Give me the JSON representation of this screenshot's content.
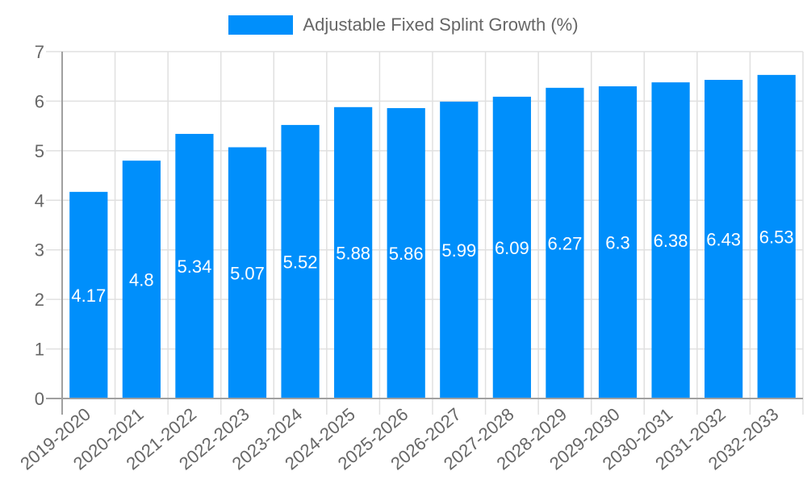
{
  "legend": {
    "label": "Adjustable Fixed Splint Growth (%)",
    "color": "#008ffb"
  },
  "colors": {
    "bar": "#008ffb",
    "bar_label": "#ffffff",
    "grid": "#e0e0e0",
    "axis": "#a0a0a0",
    "tick_text": "#666666"
  },
  "chart_data": {
    "type": "bar",
    "title": "",
    "xlabel": "",
    "ylabel": "",
    "ylim": [
      0,
      7
    ],
    "yticks": [
      0,
      1,
      2,
      3,
      4,
      5,
      6,
      7
    ],
    "grid": true,
    "legend_position": "top",
    "categories": [
      "2019-2020",
      "2020-2021",
      "2021-2022",
      "2022-2023",
      "2023-2024",
      "2024-2025",
      "2025-2026",
      "2026-2027",
      "2027-2028",
      "2028-2029",
      "2029-2030",
      "2030-2031",
      "2031-2032",
      "2032-2033"
    ],
    "series": [
      {
        "name": "Adjustable Fixed Splint Growth (%)",
        "values": [
          4.17,
          4.8,
          5.34,
          5.07,
          5.52,
          5.88,
          5.86,
          5.99,
          6.09,
          6.27,
          6.3,
          6.38,
          6.43,
          6.53
        ]
      }
    ],
    "data_labels": [
      "4.17",
      "4.8",
      "5.34",
      "5.07",
      "5.52",
      "5.88",
      "5.86",
      "5.99",
      "6.09",
      "6.27",
      "6.3",
      "6.38",
      "6.43",
      "6.53"
    ]
  }
}
